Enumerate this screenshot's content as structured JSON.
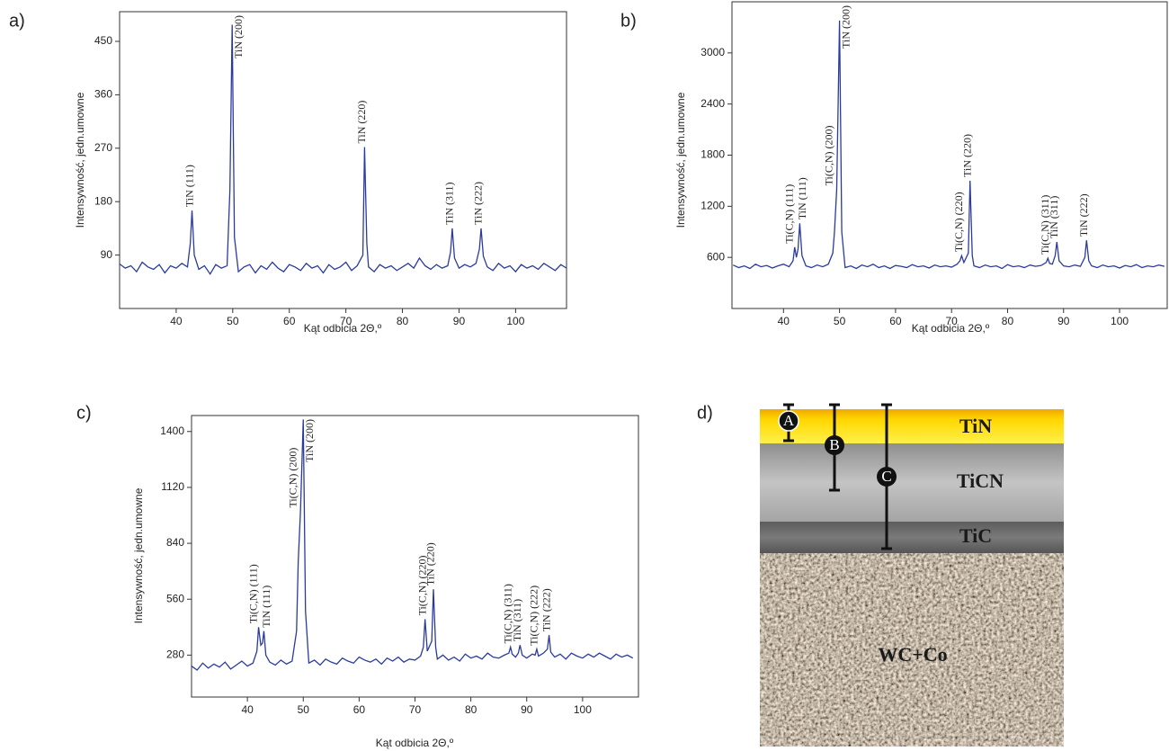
{
  "chart_data": [
    {
      "type": "line",
      "panel": "a)",
      "x_label": "Kąt odbicia 2Θ,º",
      "y_label": "Intensywność, jedn.umowne",
      "xlim": [
        30,
        109
      ],
      "ylim": [
        0,
        500
      ],
      "xticks": [
        40,
        50,
        60,
        70,
        80,
        90,
        100
      ],
      "yticks": [
        90,
        180,
        270,
        360,
        450
      ],
      "x": [
        30,
        31,
        32,
        33,
        34,
        35,
        36,
        37,
        38,
        39,
        40,
        41,
        42,
        42.5,
        42.8,
        43.2,
        44,
        45,
        46,
        47,
        48,
        49,
        49.5,
        49.9,
        50.3,
        51,
        52,
        53,
        54,
        55,
        56,
        57,
        58,
        59,
        60,
        61,
        62,
        63,
        64,
        65,
        66,
        67,
        68,
        69,
        70,
        71,
        72,
        73,
        73.3,
        73.7,
        74,
        75,
        76,
        77,
        78,
        79,
        80,
        81,
        82,
        83,
        84,
        85,
        86,
        87,
        88,
        88.5,
        88.8,
        89.2,
        90,
        91,
        92,
        93,
        93.6,
        93.9,
        94.3,
        95,
        96,
        97,
        98,
        99,
        100,
        101,
        102,
        103,
        104,
        105,
        106,
        107,
        108,
        109
      ],
      "series": [
        {
          "color": "#2a3b9c",
          "values": [
            75,
            68,
            72,
            62,
            78,
            70,
            66,
            74,
            60,
            72,
            68,
            76,
            70,
            110,
            165,
            90,
            66,
            72,
            58,
            74,
            68,
            72,
            200,
            478,
            120,
            62,
            70,
            74,
            60,
            72,
            66,
            78,
            68,
            62,
            74,
            70,
            64,
            76,
            68,
            72,
            60,
            74,
            66,
            70,
            78,
            64,
            72,
            90,
            272,
            110,
            70,
            62,
            74,
            68,
            72,
            64,
            70,
            76,
            68,
            85,
            72,
            66,
            74,
            68,
            72,
            95,
            135,
            85,
            68,
            74,
            70,
            76,
            100,
            135,
            88,
            70,
            64,
            76,
            68,
            72,
            62,
            74,
            68,
            72,
            66,
            76,
            70,
            64,
            74,
            68
          ]
        }
      ],
      "annotations": [
        {
          "text": "TiN (111)",
          "x": 42.8,
          "color": "#3a8a2a"
        },
        {
          "text": "TiN (200)",
          "x": 49.9,
          "color": "#3a8a2a"
        },
        {
          "text": "TiN (220)",
          "x": 73.3,
          "color": "#3a8a2a"
        },
        {
          "text": "TiN (311)",
          "x": 88.8,
          "color": "#3a8a2a"
        },
        {
          "text": "TiN (222)",
          "x": 93.9,
          "color": "#3a8a2a"
        }
      ]
    },
    {
      "type": "line",
      "panel": "b)",
      "x_label": "Kąt odbicia 2Θ,º",
      "y_label": "Intensywność, jedn.umowne",
      "xlim": [
        30.8,
        108.5
      ],
      "ylim": [
        0,
        3600
      ],
      "xticks": [
        40,
        50,
        60,
        70,
        80,
        90,
        100
      ],
      "yticks": [
        600,
        1200,
        1800,
        2400,
        3000
      ],
      "x": [
        31,
        32,
        33,
        34,
        35,
        36,
        37,
        38,
        39,
        40,
        41,
        41.7,
        42,
        42.3,
        42.6,
        42.9,
        43.3,
        44,
        45,
        46,
        47,
        48,
        48.8,
        49.1,
        49.5,
        50,
        50.4,
        51,
        52,
        53,
        54,
        55,
        56,
        57,
        58,
        59,
        60,
        61,
        62,
        63,
        64,
        65,
        66,
        67,
        68,
        69,
        70,
        71,
        71.5,
        71.8,
        72.2,
        73,
        73.3,
        73.7,
        74,
        75,
        76,
        77,
        78,
        79,
        80,
        81,
        82,
        83,
        84,
        85,
        86,
        86.9,
        87.2,
        87.5,
        88,
        88.5,
        88.8,
        89.2,
        90,
        91,
        92,
        93,
        93.8,
        94.1,
        94.5,
        95,
        96,
        97,
        98,
        99,
        100,
        101,
        102,
        103,
        104,
        105,
        106,
        107,
        108
      ],
      "series": [
        {
          "color": "#2a3b9c",
          "values": [
            510,
            480,
            500,
            470,
            520,
            490,
            505,
            475,
            500,
            520,
            490,
            560,
            720,
            600,
            700,
            1000,
            620,
            500,
            480,
            510,
            490,
            520,
            650,
            900,
            1400,
            3380,
            900,
            480,
            500,
            470,
            510,
            490,
            520,
            480,
            500,
            470,
            505,
            495,
            480,
            515,
            490,
            500,
            475,
            510,
            490,
            500,
            485,
            520,
            560,
            620,
            540,
            650,
            1500,
            620,
            500,
            480,
            510,
            490,
            500,
            470,
            515,
            490,
            500,
            480,
            510,
            495,
            505,
            540,
            590,
            530,
            520,
            620,
            780,
            560,
            500,
            490,
            510,
            495,
            600,
            800,
            560,
            500,
            480,
            510,
            490,
            500,
            475,
            505,
            490,
            515,
            480,
            500,
            490,
            510,
            495
          ]
        }
      ],
      "annotations": [
        {
          "text": "Ti(C,N) (111)",
          "x": 42,
          "color": "#8b2020"
        },
        {
          "text": "TiN (111)",
          "x": 42.9,
          "color": "#3a8a2a"
        },
        {
          "text": "Ti(C,N) (200)",
          "x": 49.1,
          "color": "#8b2020"
        },
        {
          "text": "TiN (200)",
          "x": 50,
          "color": "#3a8a2a"
        },
        {
          "text": "Ti(C,N) (220)",
          "x": 71.8,
          "color": "#8b2020"
        },
        {
          "text": "TiN (220)",
          "x": 73.3,
          "color": "#3a8a2a"
        },
        {
          "text": "Ti(C,N) (311)",
          "x": 87.2,
          "color": "#8b2020"
        },
        {
          "text": "TiN (311)",
          "x": 88.8,
          "color": "#3a8a2a"
        },
        {
          "text": "TiN (222)",
          "x": 94.1,
          "color": "#3a8a2a"
        }
      ]
    },
    {
      "type": "line",
      "panel": "c)",
      "x_label": "Kąt odbicia 2Θ,º",
      "y_label": "Intensywność, jedn.umowne",
      "xlim": [
        30,
        110
      ],
      "ylim": [
        70,
        1480
      ],
      "xticks": [
        40,
        50,
        60,
        70,
        80,
        90,
        100
      ],
      "yticks": [
        280,
        560,
        840,
        1120,
        1400
      ],
      "x": [
        30,
        31,
        32,
        33,
        34,
        35,
        36,
        37,
        38,
        39,
        40,
        41,
        41.7,
        42,
        42.4,
        42.7,
        42.95,
        43.3,
        44,
        45,
        46,
        47,
        48,
        48.8,
        49.1,
        49.5,
        50,
        50.4,
        51,
        52,
        53,
        54,
        55,
        56,
        57,
        58,
        59,
        60,
        61,
        62,
        63,
        64,
        65,
        66,
        67,
        68,
        69,
        70,
        71,
        71.5,
        71.8,
        72.2,
        73,
        73.3,
        73.7,
        74,
        75,
        76,
        77,
        78,
        79,
        80,
        81,
        82,
        83,
        84,
        85,
        86,
        86.8,
        87.1,
        87.4,
        88,
        88.5,
        88.8,
        89.2,
        90,
        91,
        91.5,
        91.8,
        92.1,
        93,
        93.7,
        94,
        94.3,
        95,
        96,
        97,
        98,
        99,
        100,
        101,
        102,
        103,
        104,
        105,
        106,
        107,
        108,
        109
      ],
      "series": [
        {
          "color": "#2a3b9c",
          "values": [
            225,
            205,
            240,
            215,
            235,
            220,
            245,
            210,
            230,
            250,
            225,
            240,
            300,
            420,
            330,
            340,
            400,
            280,
            245,
            230,
            255,
            235,
            250,
            400,
            750,
            1000,
            1460,
            500,
            240,
            255,
            230,
            260,
            245,
            235,
            265,
            250,
            240,
            270,
            255,
            245,
            260,
            235,
            265,
            250,
            270,
            245,
            260,
            255,
            275,
            320,
            460,
            300,
            350,
            610,
            320,
            260,
            280,
            255,
            270,
            250,
            285,
            265,
            275,
            260,
            290,
            270,
            265,
            280,
            290,
            320,
            285,
            270,
            290,
            330,
            280,
            265,
            285,
            280,
            310,
            275,
            290,
            310,
            380,
            295,
            270,
            285,
            260,
            290,
            275,
            265,
            285,
            270,
            290,
            275,
            260,
            285,
            270,
            280,
            265
          ]
        }
      ],
      "annotations": [
        {
          "text": "Ti(C,N) (111)",
          "x": 42,
          "color": "#8b2020"
        },
        {
          "text": "TiN (111)",
          "x": 42.95,
          "color": "#3a8a2a"
        },
        {
          "text": "Ti(C,N) (200)",
          "x": 49.1,
          "color": "#8b2020"
        },
        {
          "text": "TiN (200)",
          "x": 50,
          "color": "#3a8a2a"
        },
        {
          "text": "Ti(C,N) (220)",
          "x": 71.8,
          "color": "#8b2020"
        },
        {
          "text": "TiN (220)",
          "x": 73.3,
          "color": "#3a8a2a"
        },
        {
          "text": "Ti(C,N) (311)",
          "x": 87.1,
          "color": "#8b2020"
        },
        {
          "text": "TiN (311)",
          "x": 88.8,
          "color": "#3a8a2a"
        },
        {
          "text": "Ti(C,N) (222)",
          "x": 91.8,
          "color": "#8b2020"
        },
        {
          "text": "TiN (222)",
          "x": 94,
          "color": "#3a8a2a"
        }
      ]
    }
  ],
  "diagram": {
    "panel": "d)",
    "layers": [
      "TiN",
      "TiCN",
      "TiC",
      "WC+Co"
    ],
    "markers": [
      "A",
      "B",
      "C"
    ]
  }
}
